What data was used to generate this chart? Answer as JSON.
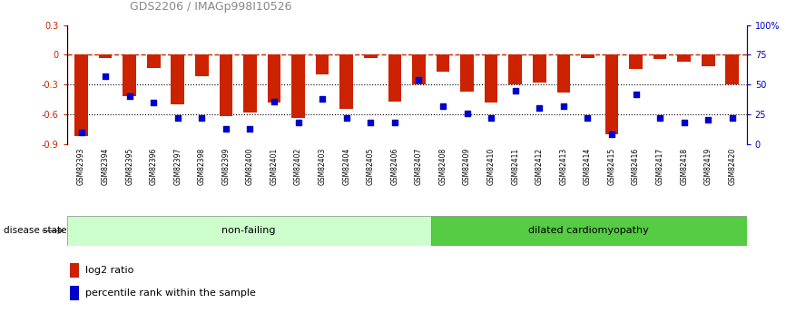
{
  "title": "GDS2206 / IMAGp998I10526",
  "samples": [
    "GSM82393",
    "GSM82394",
    "GSM82395",
    "GSM82396",
    "GSM82397",
    "GSM82398",
    "GSM82399",
    "GSM82400",
    "GSM82401",
    "GSM82402",
    "GSM82403",
    "GSM82404",
    "GSM82405",
    "GSM82406",
    "GSM82407",
    "GSM82408",
    "GSM82409",
    "GSM82410",
    "GSM82411",
    "GSM82412",
    "GSM82413",
    "GSM82414",
    "GSM82415",
    "GSM82416",
    "GSM82417",
    "GSM82418",
    "GSM82419",
    "GSM82420"
  ],
  "log2_ratio": [
    -0.82,
    -0.03,
    -0.42,
    -0.13,
    -0.5,
    -0.22,
    -0.62,
    -0.58,
    -0.48,
    -0.64,
    -0.2,
    -0.55,
    -0.03,
    -0.47,
    -0.3,
    -0.17,
    -0.37,
    -0.48,
    -0.3,
    -0.28,
    -0.38,
    -0.03,
    -0.8,
    -0.14,
    -0.04,
    -0.07,
    -0.12,
    -0.3
  ],
  "percentile": [
    10,
    57,
    40,
    35,
    22,
    22,
    13,
    13,
    36,
    18,
    38,
    22,
    18,
    18,
    54,
    32,
    26,
    22,
    45,
    30,
    32,
    22,
    8,
    42,
    22,
    18,
    20,
    22
  ],
  "non_failing_count": 15,
  "ylim_left": [
    -0.9,
    0.3
  ],
  "ylim_right": [
    0,
    100
  ],
  "bar_color": "#cc2200",
  "dot_color": "#0000cc",
  "hline_dotted_values": [
    -0.3,
    -0.6
  ],
  "non_failing_label": "non-failing",
  "dilated_label": "dilated cardiomyopathy",
  "disease_state_label": "disease state",
  "legend_bar_label": "log2 ratio",
  "legend_dot_label": "percentile rank within the sample",
  "non_failing_color": "#ccffcc",
  "dilated_color": "#55cc44",
  "title_color": "#888888",
  "xtick_bg_color": "#cccccc",
  "bar_width": 0.55
}
